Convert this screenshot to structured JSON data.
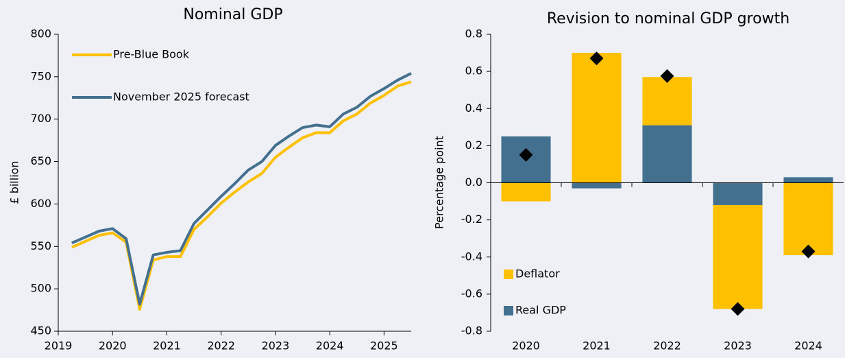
{
  "chart_data": [
    {
      "type": "line",
      "title": "Nominal GDP",
      "y_label": "£ billion",
      "x": [
        2019.25,
        2019.5,
        2019.75,
        2020.0,
        2020.25,
        2020.5,
        2020.75,
        2021.0,
        2021.25,
        2021.5,
        2021.75,
        2022.0,
        2022.25,
        2022.5,
        2022.75,
        2023.0,
        2023.25,
        2023.5,
        2023.75,
        2024.0,
        2024.25,
        2024.5,
        2024.75,
        2025.0,
        2025.25,
        2025.5
      ],
      "series": [
        {
          "name": "Pre-Blue Book",
          "color": "#ffc000",
          "values": [
            549,
            556,
            563,
            566,
            555,
            476,
            534,
            538,
            538,
            570,
            585,
            601,
            614,
            626,
            636,
            655,
            667,
            678,
            684,
            684,
            698,
            706,
            719,
            728,
            739,
            744
          ]
        },
        {
          "name": "November 2025 forecast",
          "color": "#44708f",
          "values": [
            554,
            561,
            568,
            571,
            559,
            482,
            540,
            543,
            545,
            577,
            593,
            609,
            624,
            640,
            650,
            669,
            680,
            690,
            693,
            691,
            706,
            714,
            727,
            736,
            746,
            754
          ]
        }
      ],
      "xlim": [
        2019,
        2025.5
      ],
      "xticks": [
        2019,
        2020,
        2021,
        2022,
        2023,
        2024,
        2025
      ],
      "ylim": [
        450,
        800
      ],
      "yticks": [
        450,
        500,
        550,
        600,
        650,
        700,
        750,
        800
      ],
      "legend": "upper left"
    },
    {
      "type": "stacked_bar",
      "title": "Revision to nominal GDP growth",
      "y_label": "Percentage point",
      "categories": [
        "2020",
        "2021",
        "2022",
        "2023",
        "2024"
      ],
      "series": [
        {
          "name": "Real GDP",
          "color": "#44708f",
          "values": [
            0.25,
            -0.03,
            0.31,
            -0.12,
            0.03
          ]
        },
        {
          "name": "Deflator",
          "color": "#ffc000",
          "values": [
            -0.1,
            0.7,
            0.26,
            -0.56,
            -0.39
          ]
        }
      ],
      "markers": {
        "color": "#000000",
        "shape": "diamond",
        "values": [
          0.15,
          0.67,
          0.575,
          -0.68,
          -0.37
        ]
      },
      "ylim": [
        -0.8,
        0.8
      ],
      "yticks": [
        -0.8,
        -0.6,
        -0.4,
        -0.2,
        {
          "value": 0,
          "label": "0.0"
        },
        0.2,
        0.4,
        0.6,
        0.8
      ],
      "legend": "lower left"
    }
  ]
}
